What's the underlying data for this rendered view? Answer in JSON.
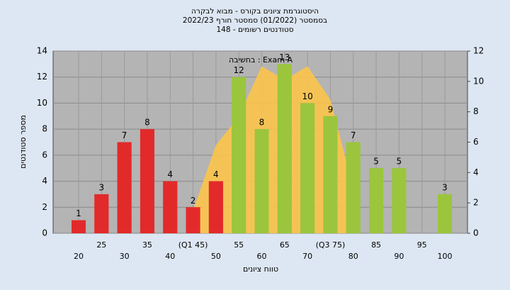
{
  "chart_data": {
    "type": "bar",
    "title": [
      "היסטוגרמת ציונים בקורס - מבוא לבקרה",
      "בסמסטר  (01/2022)  סמסטר חורף 2022/23",
      "סטודנטים רשומים - 148"
    ],
    "x_label": "טווח ציונים",
    "y_label": "מספר סטודנטים",
    "annotation": "בחשיבה : Exam A",
    "categories": [
      20,
      25,
      30,
      35,
      40,
      "(Q1 45)",
      50,
      55,
      60,
      65,
      70,
      "(Q3 75)",
      80,
      85,
      90,
      95,
      100
    ],
    "values": [
      1,
      3,
      7,
      8,
      4,
      2,
      4,
      12,
      8,
      13,
      10,
      9,
      7,
      5,
      5,
      null,
      3
    ],
    "colors": [
      "#e32a2a",
      "#e32a2a",
      "#e32a2a",
      "#e32a2a",
      "#e32a2a",
      "#e32a2a",
      "#e32a2a",
      "#9bc53d",
      "#9bc53d",
      "#9bc53d",
      "#9bc53d",
      "#9bc53d",
      "#9bc53d",
      "#9bc53d",
      "#9bc53d",
      "#9bc53d",
      "#9bc53d"
    ],
    "area": {
      "color": "#fcc44a",
      "axis": "y2",
      "values": [
        null,
        null,
        null,
        null,
        null,
        1.5,
        5.8,
        7.7,
        11,
        10.1,
        11,
        8.8,
        3,
        null,
        null,
        null,
        null
      ]
    },
    "ylim": [
      0,
      14
    ],
    "yticks": [
      0,
      2,
      4,
      6,
      8,
      10,
      12,
      14
    ],
    "y2lim": [
      0,
      12
    ],
    "y2ticks": [
      0,
      2,
      4,
      6,
      8,
      10,
      12
    ],
    "grid": true
  }
}
